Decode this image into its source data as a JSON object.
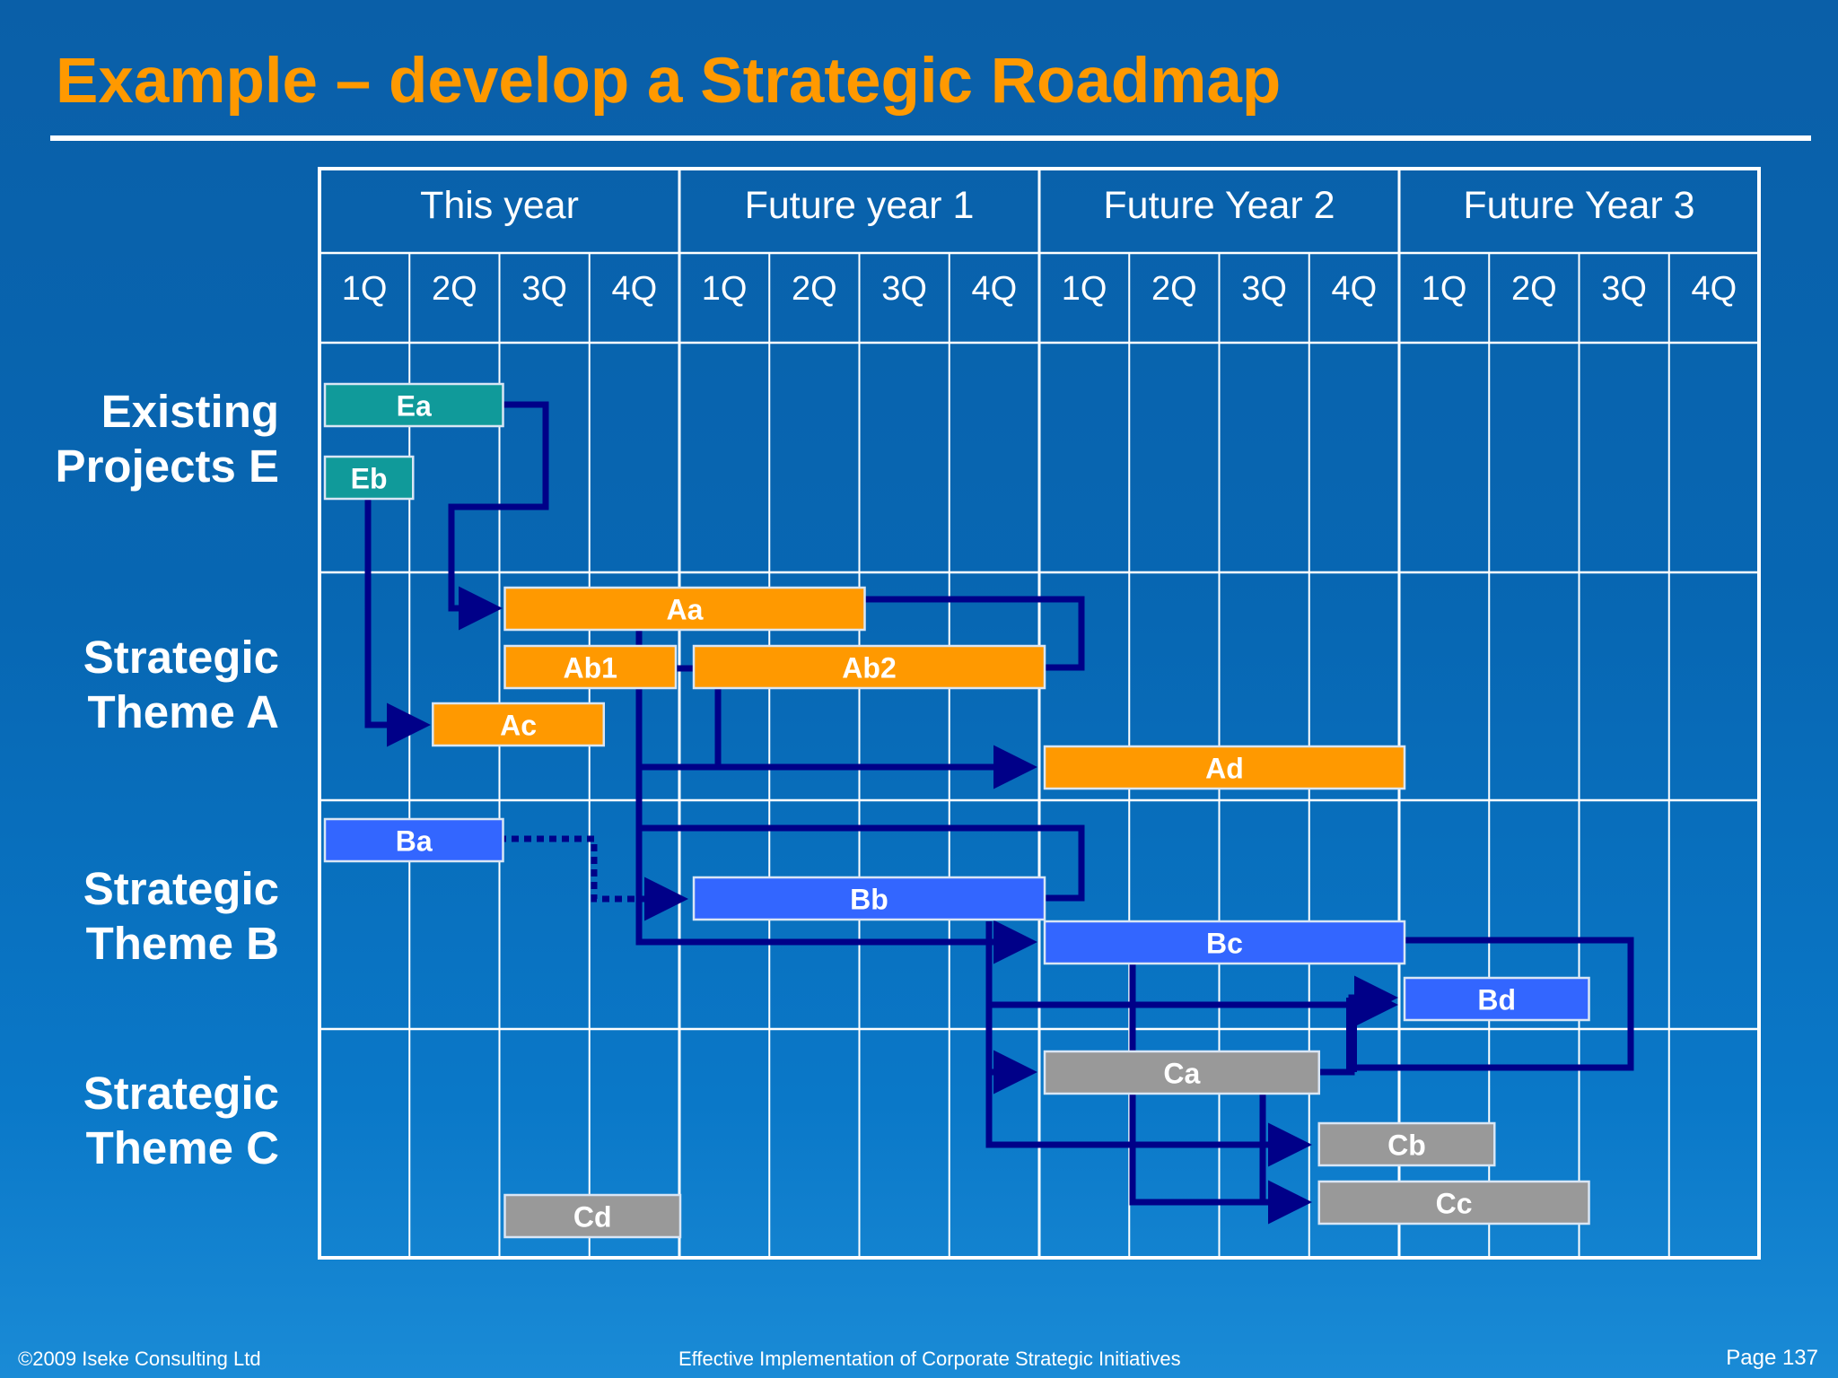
{
  "slide": {
    "title": "Example – develop a Strategic Roadmap"
  },
  "timeline": {
    "years": [
      "This year",
      "Future year 1",
      "Future Year 2",
      "Future Year 3"
    ],
    "quarters": [
      "1Q",
      "2Q",
      "3Q",
      "4Q",
      "1Q",
      "2Q",
      "3Q",
      "4Q",
      "1Q",
      "2Q",
      "3Q",
      "4Q",
      "1Q",
      "2Q",
      "3Q",
      "4Q"
    ]
  },
  "rows": [
    {
      "label": "Existing\nProjects E"
    },
    {
      "label": "Strategic\nTheme A"
    },
    {
      "label": "Strategic\nTheme B"
    },
    {
      "label": "Strategic\nTheme C"
    }
  ],
  "colors": {
    "existing": "#109a9a",
    "theme_a": "#ff9900",
    "theme_b": "#3366ff",
    "theme_c": "#999999",
    "arrow": "#000088",
    "grid": "#ffffff"
  },
  "tasks": [
    {
      "id": "Ea",
      "label": "Ea",
      "row": 0,
      "start_quarter": 1,
      "end_quarter": 2.98,
      "color": "#109a9a"
    },
    {
      "id": "Eb",
      "label": "Eb",
      "row": 0,
      "start_quarter": 1,
      "end_quarter": 1.98,
      "color": "#109a9a"
    },
    {
      "id": "Aa",
      "label": "Aa",
      "row": 1,
      "start_quarter": 3,
      "end_quarter": 7,
      "color": "#ff9900"
    },
    {
      "id": "Ab1",
      "label": "Ab1",
      "row": 1,
      "start_quarter": 3,
      "end_quarter": 4.9,
      "color": "#ff9900"
    },
    {
      "id": "Ab2",
      "label": "Ab2",
      "row": 1,
      "start_quarter": 5.1,
      "end_quarter": 9,
      "color": "#ff9900"
    },
    {
      "id": "Ac",
      "label": "Ac",
      "row": 1,
      "start_quarter": 2.2,
      "end_quarter": 4.1,
      "color": "#ff9900"
    },
    {
      "id": "Ad",
      "label": "Ad",
      "row": 1,
      "start_quarter": 9,
      "end_quarter": 13,
      "color": "#ff9900"
    },
    {
      "id": "Ba",
      "label": "Ba",
      "row": 2,
      "start_quarter": 1,
      "end_quarter": 2.98,
      "color": "#3366ff"
    },
    {
      "id": "Bb",
      "label": "Bb",
      "row": 2,
      "start_quarter": 5.1,
      "end_quarter": 9,
      "color": "#3366ff"
    },
    {
      "id": "Bc",
      "label": "Bc",
      "row": 2,
      "start_quarter": 9,
      "end_quarter": 13,
      "color": "#3366ff"
    },
    {
      "id": "Bd",
      "label": "Bd",
      "row": 2,
      "start_quarter": 13,
      "end_quarter": 15.05,
      "color": "#3366ff"
    },
    {
      "id": "Ca",
      "label": "Ca",
      "row": 3,
      "start_quarter": 9,
      "end_quarter": 12.05,
      "color": "#999999"
    },
    {
      "id": "Cb",
      "label": "Cb",
      "row": 3,
      "start_quarter": 12.05,
      "end_quarter": 14,
      "color": "#999999"
    },
    {
      "id": "Cc",
      "label": "Cc",
      "row": 3,
      "start_quarter": 12.05,
      "end_quarter": 15.05,
      "color": "#999999"
    },
    {
      "id": "Cd",
      "label": "Cd",
      "row": 3,
      "start_quarter": 3,
      "end_quarter": 4.95,
      "color": "#999999"
    }
  ],
  "dependencies": [
    {
      "from": "Ea",
      "to": "Aa",
      "style": "solid"
    },
    {
      "from": "Eb",
      "to": "Ac",
      "style": "solid"
    },
    {
      "from": "Ab1",
      "to": "Ad",
      "style": "solid"
    },
    {
      "from": "Aa",
      "to": "Bc",
      "style": "solid"
    },
    {
      "from": "Ab2",
      "to": "Ad",
      "style": "solid"
    },
    {
      "from": "Ba",
      "to": "Bb",
      "style": "dotted"
    },
    {
      "from": "Bb",
      "to": "Bc",
      "style": "solid"
    },
    {
      "from": "Bc",
      "to": "Bd",
      "style": "solid"
    },
    {
      "from": "Bc",
      "to": "Ca",
      "style": "solid"
    },
    {
      "from": "Bc",
      "to": "Cb",
      "style": "solid"
    },
    {
      "from": "Bc",
      "to": "Cc",
      "style": "solid"
    },
    {
      "from": "Ca",
      "to": "Cc",
      "style": "solid"
    },
    {
      "from": "Ca",
      "to": "Bd",
      "style": "solid"
    }
  ],
  "footer": {
    "copyright": "©2009 Iseke Consulting Ltd",
    "course": "Effective Implementation of Corporate Strategic Initiatives",
    "page": "Page 137"
  }
}
